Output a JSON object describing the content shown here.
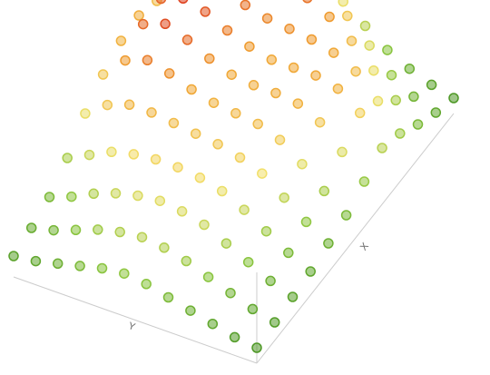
{
  "chart_data": {
    "type": "scatter3d",
    "xlabel": "X",
    "ylabel": "Y",
    "zlim": [
      0,
      5
    ],
    "colorscale": [
      "#3a8a1e",
      "#8cc63f",
      "#f2e06a",
      "#f0a030",
      "#d9261c"
    ],
    "z": [
      [
        0.3,
        0.4,
        0.6,
        0.8,
        1.0,
        1.2,
        1.3,
        1.2,
        1.0,
        0.8,
        0.6,
        0.5
      ],
      [
        0.4,
        0.6,
        0.9,
        1.2,
        1.5,
        1.7,
        1.8,
        1.7,
        1.5,
        1.2,
        0.9,
        0.7
      ],
      [
        0.5,
        0.8,
        1.2,
        1.6,
        2.0,
        2.2,
        2.3,
        2.2,
        2.0,
        1.7,
        1.3,
        1.0
      ],
      [
        0.6,
        1.0,
        1.5,
        2.0,
        2.4,
        2.6,
        2.7,
        2.7,
        2.6,
        2.4,
        2.0,
        1.6
      ],
      [
        0.8,
        1.3,
        1.9,
        2.5,
        2.8,
        3.0,
        3.1,
        3.2,
        3.3,
        3.3,
        3.0,
        2.4
      ],
      [
        1.0,
        1.6,
        2.3,
        2.9,
        3.2,
        3.3,
        3.4,
        3.6,
        3.9,
        4.1,
        3.8,
        3.0
      ],
      [
        1.4,
        2.2,
        3.0,
        3.4,
        3.5,
        3.5,
        3.6,
        3.9,
        4.3,
        4.6,
        4.3,
        3.4
      ],
      [
        1.8,
        2.8,
        3.4,
        3.6,
        3.6,
        3.6,
        3.8,
        4.1,
        4.5,
        4.7,
        4.4,
        3.5
      ],
      [
        1.5,
        2.4,
        3.2,
        3.6,
        3.8,
        3.9,
        4.0,
        4.2,
        4.4,
        4.4,
        4.0,
        3.2
      ],
      [
        1.0,
        1.6,
        2.4,
        3.2,
        3.8,
        4.2,
        4.4,
        4.5,
        4.3,
        4.0,
        3.6,
        3.0
      ],
      [
        0.6,
        0.9,
        1.4,
        2.2,
        3.0,
        3.6,
        4.2,
        4.6,
        4.4,
        3.9,
        3.4,
        2.8
      ],
      [
        0.3,
        0.5,
        0.8,
        1.2,
        1.8,
        2.4,
        3.0,
        3.4,
        3.2,
        2.8,
        2.4,
        2.0
      ]
    ]
  }
}
